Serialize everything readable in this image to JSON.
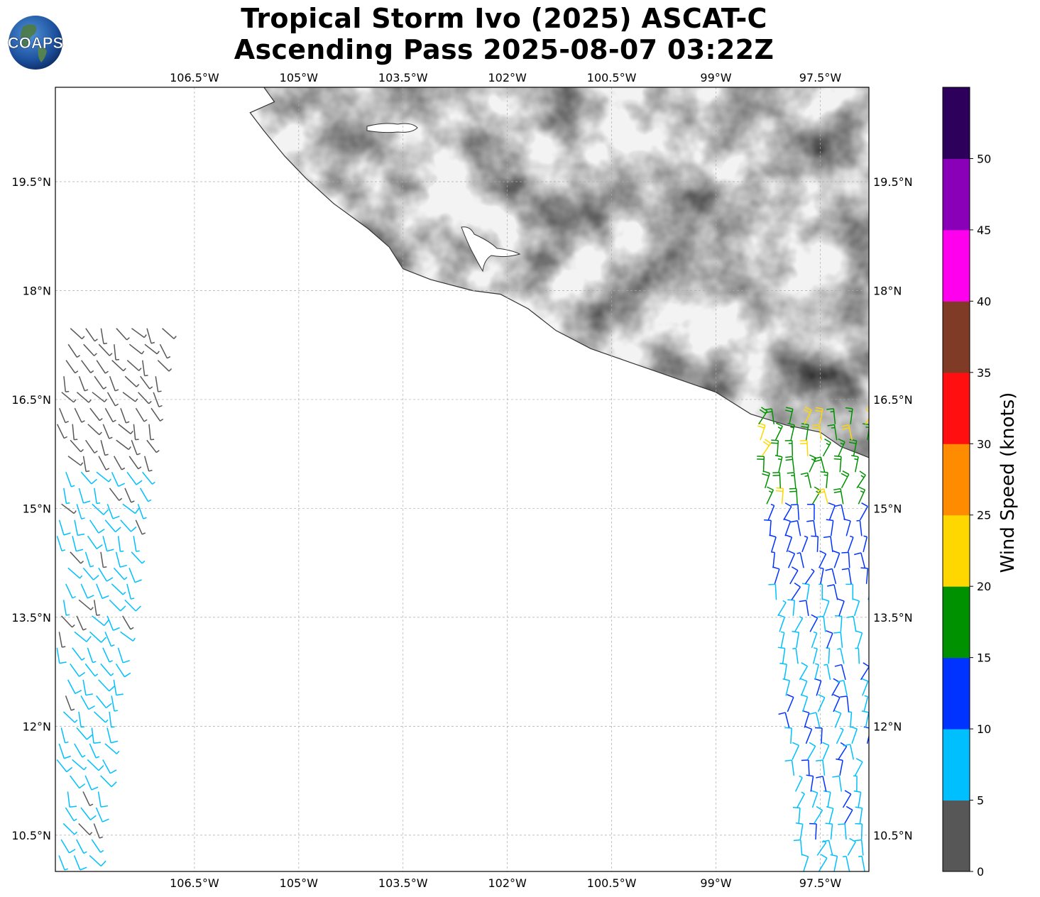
{
  "title": {
    "line1": "Tropical Storm Ivo (2025) ASCAT-C",
    "line2": "Ascending Pass 2025-08-07 03:22Z"
  },
  "logo": {
    "text": "COAPS"
  },
  "map": {
    "lon_min": -108.5,
    "lon_max": -96.8,
    "lat_min": 10.0,
    "lat_max": 20.8,
    "lon_ticks": [
      {
        "value": -106.5,
        "label": "106.5°W"
      },
      {
        "value": -105.0,
        "label": "105°W"
      },
      {
        "value": -103.5,
        "label": "103.5°W"
      },
      {
        "value": -102.0,
        "label": "102°W"
      },
      {
        "value": -100.5,
        "label": "100.5°W"
      },
      {
        "value": -99.0,
        "label": "99°W"
      },
      {
        "value": -97.5,
        "label": "97.5°W"
      }
    ],
    "lat_ticks": [
      {
        "value": 19.5,
        "label": "19.5°N"
      },
      {
        "value": 18.0,
        "label": "18°N"
      },
      {
        "value": 16.5,
        "label": "16.5°N"
      },
      {
        "value": 15.0,
        "label": "15°N"
      },
      {
        "value": 13.5,
        "label": "13.5°N"
      },
      {
        "value": 12.0,
        "label": "12°N"
      },
      {
        "value": 10.5,
        "label": "10.5°N"
      }
    ]
  },
  "colorbar": {
    "label": "Wind Speed (knots)",
    "ticks": [
      "0",
      "5",
      "10",
      "15",
      "20",
      "25",
      "30",
      "35",
      "40",
      "45",
      "50"
    ],
    "colors": [
      "#575757",
      "#00bfff",
      "#0033ff",
      "#009100",
      "#ffd700",
      "#ff8c00",
      "#ff0f0f",
      "#7f3b26",
      "#ff00ee",
      "#8a00b8",
      "#2d005c"
    ]
  },
  "swaths": [
    {
      "name": "west",
      "lon_start": -108.5,
      "lon_end": -106.8,
      "lat_start": 10.0,
      "lat_end": 17.5,
      "drift": -0.18,
      "dir_deg": 300,
      "speed_kt": 7
    },
    {
      "name": "east",
      "lon_start": -98.4,
      "lon_end": -96.8,
      "lat_start": 10.0,
      "lat_end": 16.3,
      "drift": 0.11,
      "dir_deg": 80,
      "speed_kt": 14
    }
  ]
}
